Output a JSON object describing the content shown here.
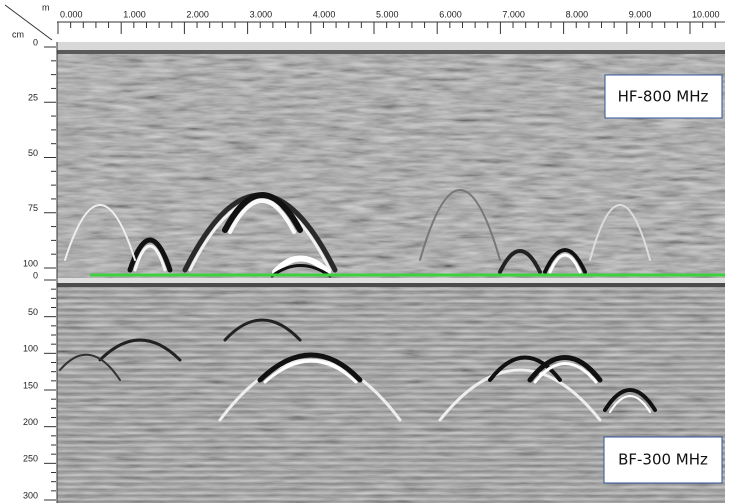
{
  "top_axis": {
    "unit": "m",
    "labels": [
      "0.000",
      "1.000",
      "2.000",
      "3.000",
      "4.000",
      "5.000",
      "6.000",
      "7.000",
      "8.000",
      "9.000",
      "10.000"
    ]
  },
  "left_axis": {
    "unit": "cm",
    "upper_labels": [
      "0",
      "25",
      "50",
      "75",
      "100"
    ],
    "lower_labels": [
      "0",
      "50",
      "100",
      "150",
      "200",
      "250",
      "300"
    ]
  },
  "panels": {
    "upper": "HF-800 MHz",
    "lower": "BF-300 MHz"
  }
}
